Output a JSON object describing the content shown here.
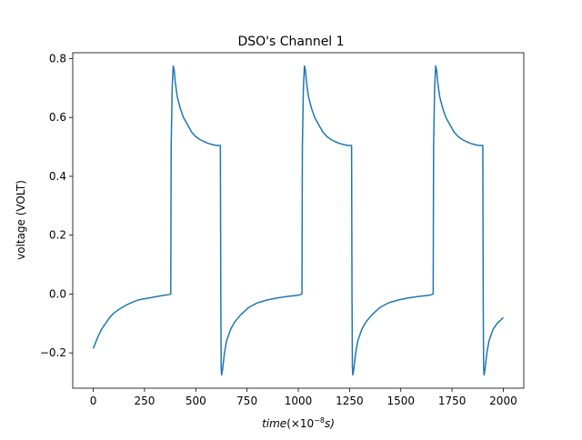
{
  "chart_data": {
    "type": "line",
    "title": "DSO's Channel 1",
    "xlabel": {
      "italic_part": "time",
      "unit_part": "(×10",
      "exponent": "−8",
      "unit_tail": "s)"
    },
    "ylabel": "voltage (VOLT)",
    "xlim": [
      -100,
      2100
    ],
    "ylim": [
      -0.32,
      0.82
    ],
    "xticks": [
      0,
      250,
      500,
      750,
      1000,
      1250,
      1500,
      1750,
      2000
    ],
    "xtick_labels": [
      "0",
      "250",
      "500",
      "750",
      "1000",
      "1250",
      "1500",
      "1750",
      "2000"
    ],
    "yticks": [
      -0.2,
      0.0,
      0.2,
      0.4,
      0.6,
      0.8
    ],
    "ytick_labels": [
      "−0.2",
      "0.0",
      "0.2",
      "0.4",
      "0.6",
      "0.8"
    ],
    "grid": false,
    "series": [
      {
        "color": "#1f77b4",
        "x": [
          0,
          20,
          40,
          60,
          80,
          100,
          130,
          160,
          190,
          220,
          260,
          300,
          340,
          370,
          378,
          380,
          385,
          390,
          395,
          400,
          410,
          425,
          440,
          460,
          480,
          500,
          520,
          540,
          560,
          580,
          600,
          620,
          622,
          624,
          626,
          630,
          640,
          650,
          670,
          690,
          720,
          760,
          800,
          850,
          900,
          950,
          1000,
          1010,
          1018,
          1020,
          1025,
          1030,
          1035,
          1040,
          1050,
          1065,
          1080,
          1100,
          1120,
          1140,
          1160,
          1180,
          1200,
          1220,
          1240,
          1260,
          1262,
          1264,
          1266,
          1270,
          1280,
          1290,
          1310,
          1330,
          1360,
          1400,
          1440,
          1490,
          1540,
          1590,
          1640,
          1650,
          1658,
          1660,
          1665,
          1670,
          1675,
          1680,
          1690,
          1705,
          1720,
          1740,
          1760,
          1780,
          1800,
          1820,
          1840,
          1860,
          1880,
          1900,
          1902,
          1904,
          1906,
          1910,
          1920,
          1930,
          1950,
          1970,
          2000
        ],
        "y": [
          -0.185,
          -0.15,
          -0.12,
          -0.1,
          -0.08,
          -0.065,
          -0.05,
          -0.038,
          -0.028,
          -0.02,
          -0.015,
          -0.01,
          -0.005,
          -0.002,
          0.0,
          0.5,
          0.7,
          0.775,
          0.76,
          0.72,
          0.67,
          0.63,
          0.6,
          0.575,
          0.55,
          0.535,
          0.525,
          0.518,
          0.512,
          0.508,
          0.505,
          0.505,
          0.0,
          -0.25,
          -0.275,
          -0.26,
          -0.2,
          -0.16,
          -0.12,
          -0.095,
          -0.07,
          -0.045,
          -0.03,
          -0.02,
          -0.013,
          -0.008,
          -0.004,
          -0.002,
          0.0,
          0.5,
          0.7,
          0.775,
          0.76,
          0.72,
          0.67,
          0.63,
          0.6,
          0.575,
          0.55,
          0.535,
          0.525,
          0.518,
          0.512,
          0.508,
          0.505,
          0.505,
          0.0,
          -0.25,
          -0.275,
          -0.26,
          -0.2,
          -0.16,
          -0.12,
          -0.095,
          -0.07,
          -0.045,
          -0.03,
          -0.02,
          -0.013,
          -0.008,
          -0.004,
          -0.002,
          0.0,
          0.5,
          0.7,
          0.775,
          0.76,
          0.72,
          0.67,
          0.63,
          0.6,
          0.575,
          0.55,
          0.535,
          0.525,
          0.518,
          0.512,
          0.508,
          0.505,
          0.505,
          0.0,
          -0.25,
          -0.275,
          -0.26,
          -0.2,
          -0.16,
          -0.12,
          -0.1,
          -0.08
        ]
      }
    ]
  }
}
